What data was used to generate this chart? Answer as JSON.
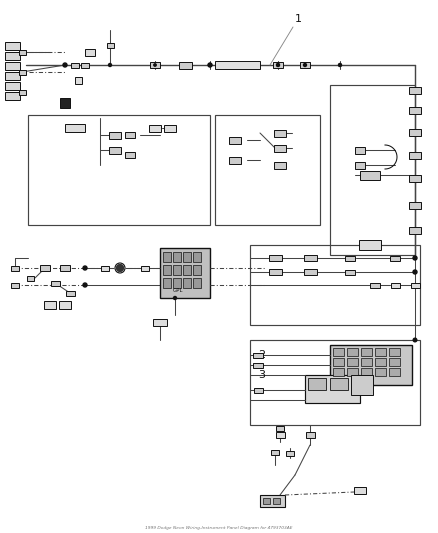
{
  "bg_color": "#ffffff",
  "lc": "#444444",
  "dc": "#111111",
  "gc": "#888888",
  "title": "1999 Dodge Neon Wiring-Instrument Panel Diagram for 4793703AE",
  "label_1": "1",
  "label_2": "2",
  "label_3": "3"
}
